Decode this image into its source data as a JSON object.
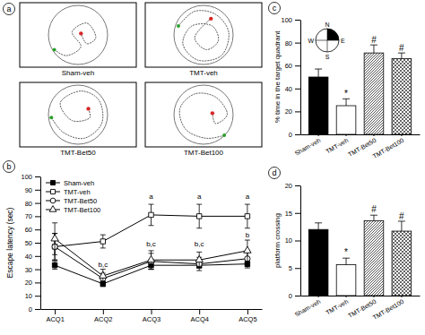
{
  "swim_paths": {
    "panel": "a",
    "labels": [
      "Sham-veh",
      "TMT-veh",
      "TMT-Bet50",
      "TMT-Bet100"
    ]
  },
  "chart_data": [
    {
      "type": "line",
      "panel": "b",
      "y_label": "Escape latency (sec)",
      "categories": [
        "ACQ1",
        "ACQ2",
        "ACQ3",
        "ACQ4",
        "ACQ5"
      ],
      "ylim": [
        0,
        100
      ],
      "yticks": [
        0,
        10,
        20,
        30,
        40,
        50,
        60,
        70,
        80,
        90,
        100
      ],
      "legend": "upper-left",
      "series": [
        {
          "name": "Sham-veh",
          "color": "#000000",
          "marker": "filled-square",
          "values": [
            33,
            19,
            33,
            33,
            34
          ],
          "errors": [
            3,
            2,
            3,
            2,
            3
          ]
        },
        {
          "name": "TMT-veh",
          "color": "#000000",
          "marker": "open-square",
          "values": [
            47,
            51,
            71,
            70,
            70
          ],
          "errors": [
            10,
            5,
            8,
            9,
            9
          ]
        },
        {
          "name": "TMT-Bet50",
          "color": "#000000",
          "marker": "open-circle",
          "values": [
            47,
            23,
            36,
            34,
            38
          ],
          "errors": [
            10,
            4,
            6,
            5,
            6
          ]
        },
        {
          "name": "TMT-Bet100",
          "color": "#000000",
          "marker": "open-triangle",
          "values": [
            53,
            25,
            37,
            37,
            44
          ],
          "errors": [
            12,
            5,
            7,
            6,
            8
          ]
        }
      ],
      "annotations": [
        {
          "text": "b,c",
          "x": "ACQ2",
          "y": 32
        },
        {
          "text": "a",
          "x": "ACQ3",
          "y": 83
        },
        {
          "text": "b,c",
          "x": "ACQ3",
          "y": 47
        },
        {
          "text": "a",
          "x": "ACQ4",
          "y": 83
        },
        {
          "text": "b,c",
          "x": "ACQ4",
          "y": 47
        },
        {
          "text": "a",
          "x": "ACQ5",
          "y": 83
        },
        {
          "text": "b",
          "x": "ACQ5",
          "y": 54
        }
      ]
    },
    {
      "type": "bar",
      "panel": "c",
      "y_label": "% time in the target quadrant",
      "categories": [
        "Sham-veh",
        "TMT-veh",
        "TMT-Bet50",
        "TMT-Bet100"
      ],
      "values": [
        50,
        25,
        71,
        66
      ],
      "errors": [
        7,
        6,
        7,
        5
      ],
      "colors": [
        "#000000",
        "#ffffff",
        "#444444",
        "#666666"
      ],
      "ylim": [
        0,
        100
      ],
      "yticks": [
        0,
        20,
        40,
        60,
        80,
        100
      ],
      "inset": {
        "labels": [
          "N",
          "E",
          "S",
          "W"
        ]
      },
      "annotations": [
        {
          "text": "*",
          "x": "TMT-veh",
          "y": 33
        },
        {
          "text": "#",
          "x": "TMT-Bet50",
          "y": 80
        },
        {
          "text": "#",
          "x": "TMT-Bet100",
          "y": 73
        }
      ]
    },
    {
      "type": "bar",
      "panel": "d",
      "y_label": "platform crossing",
      "categories": [
        "Sham-veh",
        "TMT-veh",
        "TMT-Bet50",
        "TMT-Bet100"
      ],
      "values": [
        12,
        5.6,
        13.6,
        11.7
      ],
      "errors": [
        1.2,
        1.2,
        1.0,
        1.8
      ],
      "colors": [
        "#000000",
        "#ffffff",
        "#444444",
        "#666666"
      ],
      "ylim": [
        0,
        20
      ],
      "yticks": [
        0,
        5,
        10,
        15,
        20
      ],
      "annotations": [
        {
          "text": "*",
          "x": "TMT-veh",
          "y": 7.3
        },
        {
          "text": "#",
          "x": "TMT-Bet50",
          "y": 15.1
        },
        {
          "text": "#",
          "x": "TMT-Bet100",
          "y": 13.9
        }
      ]
    }
  ]
}
